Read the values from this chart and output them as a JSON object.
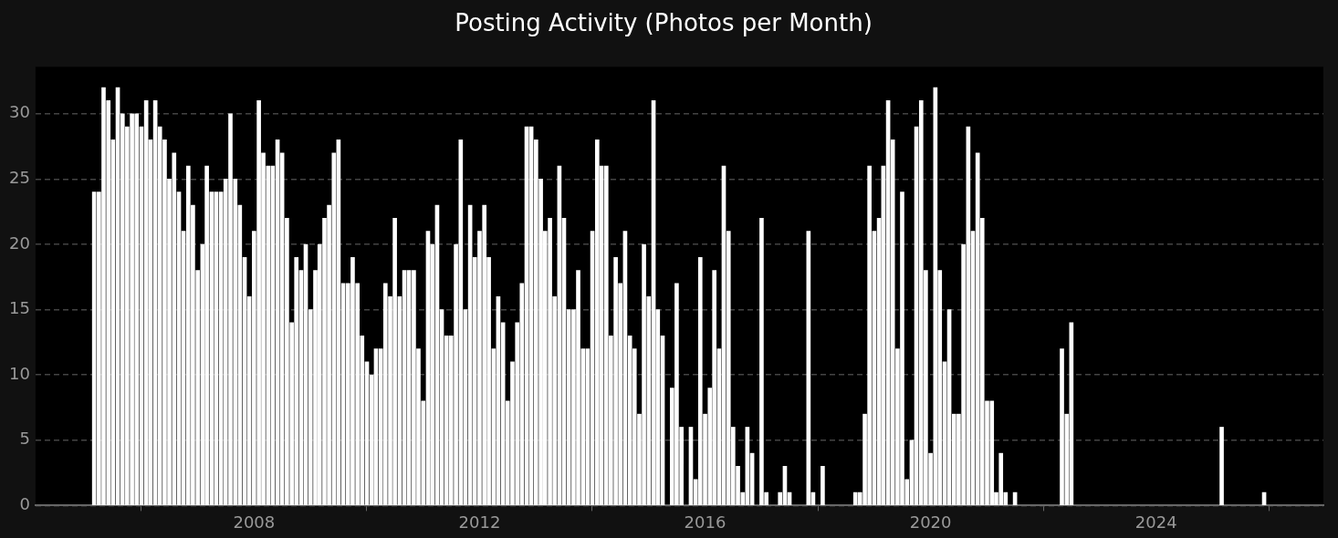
{
  "chart_data": {
    "type": "bar",
    "title": "Posting Activity (Photos per Month)",
    "x": [
      "2005-03",
      "2005-04",
      "2005-05",
      "2005-06",
      "2005-07",
      "2005-08",
      "2005-09",
      "2005-10",
      "2005-11",
      "2005-12",
      "2006-01",
      "2006-02",
      "2006-03",
      "2006-04",
      "2006-05",
      "2006-06",
      "2006-07",
      "2006-08",
      "2006-09",
      "2006-10",
      "2006-11",
      "2006-12",
      "2007-01",
      "2007-02",
      "2007-03",
      "2007-04",
      "2007-05",
      "2007-06",
      "2007-07",
      "2007-08",
      "2007-09",
      "2007-10",
      "2007-11",
      "2007-12",
      "2008-01",
      "2008-02",
      "2008-03",
      "2008-04",
      "2008-05",
      "2008-06",
      "2008-07",
      "2008-08",
      "2008-09",
      "2008-10",
      "2008-11",
      "2008-12",
      "2009-01",
      "2009-02",
      "2009-03",
      "2009-04",
      "2009-05",
      "2009-06",
      "2009-07",
      "2009-08",
      "2009-09",
      "2009-10",
      "2009-11",
      "2009-12",
      "2010-01",
      "2010-02",
      "2010-03",
      "2010-04",
      "2010-05",
      "2010-06",
      "2010-07",
      "2010-08",
      "2010-09",
      "2010-10",
      "2010-11",
      "2010-12",
      "2011-01",
      "2011-02",
      "2011-03",
      "2011-04",
      "2011-05",
      "2011-06",
      "2011-07",
      "2011-08",
      "2011-09",
      "2011-10",
      "2011-11",
      "2011-12",
      "2012-01",
      "2012-02",
      "2012-03",
      "2012-04",
      "2012-05",
      "2012-06",
      "2012-07",
      "2012-08",
      "2012-09",
      "2012-10",
      "2012-11",
      "2012-12",
      "2013-01",
      "2013-02",
      "2013-03",
      "2013-04",
      "2013-05",
      "2013-06",
      "2013-07",
      "2013-08",
      "2013-09",
      "2013-10",
      "2013-11",
      "2013-12",
      "2014-01",
      "2014-02",
      "2014-03",
      "2014-04",
      "2014-05",
      "2014-06",
      "2014-07",
      "2014-08",
      "2014-09",
      "2014-10",
      "2014-11",
      "2014-12",
      "2015-01",
      "2015-02",
      "2015-03",
      "2015-04",
      "2015-06",
      "2015-07",
      "2015-08",
      "2015-10",
      "2015-11",
      "2015-12",
      "2016-01",
      "2016-02",
      "2016-03",
      "2016-04",
      "2016-05",
      "2016-06",
      "2016-07",
      "2016-08",
      "2016-09",
      "2016-10",
      "2016-11",
      "2017-01",
      "2017-02",
      "2017-05",
      "2017-06",
      "2017-07",
      "2017-11",
      "2017-12",
      "2018-02",
      "2018-09",
      "2018-10",
      "2018-11",
      "2018-12",
      "2019-01",
      "2019-02",
      "2019-03",
      "2019-04",
      "2019-05",
      "2019-06",
      "2019-07",
      "2019-08",
      "2019-09",
      "2019-10",
      "2019-11",
      "2019-12",
      "2020-01",
      "2020-02",
      "2020-03",
      "2020-04",
      "2020-05",
      "2020-06",
      "2020-07",
      "2020-08",
      "2020-09",
      "2020-10",
      "2020-11",
      "2020-12",
      "2021-01",
      "2021-02",
      "2021-03",
      "2021-04",
      "2021-05",
      "2021-07",
      "2022-05",
      "2022-06",
      "2022-07",
      "2025-03",
      "2025-12"
    ],
    "values": [
      24,
      24,
      32,
      31,
      28,
      32,
      30,
      29,
      30,
      30,
      29,
      31,
      28,
      31,
      29,
      28,
      25,
      27,
      24,
      21,
      26,
      23,
      18,
      20,
      26,
      24,
      24,
      24,
      25,
      30,
      25,
      23,
      19,
      16,
      21,
      31,
      27,
      26,
      26,
      28,
      27,
      22,
      14,
      19,
      18,
      20,
      15,
      18,
      20,
      22,
      23,
      27,
      28,
      17,
      17,
      19,
      17,
      13,
      11,
      10,
      12,
      12,
      17,
      16,
      22,
      16,
      18,
      18,
      18,
      12,
      8,
      21,
      20,
      23,
      15,
      13,
      13,
      20,
      28,
      15,
      23,
      19,
      21,
      23,
      19,
      12,
      16,
      14,
      8,
      11,
      14,
      17,
      29,
      29,
      28,
      25,
      21,
      22,
      16,
      26,
      22,
      15,
      15,
      18,
      12,
      12,
      21,
      28,
      26,
      26,
      13,
      19,
      17,
      21,
      13,
      12,
      7,
      20,
      16,
      31,
      15,
      13,
      9,
      17,
      6,
      6,
      2,
      19,
      7,
      9,
      18,
      12,
      26,
      21,
      6,
      3,
      1,
      6,
      4,
      22,
      1,
      1,
      3,
      1,
      21,
      1,
      3,
      1,
      1,
      7,
      26,
      21,
      22,
      26,
      31,
      28,
      12,
      24,
      2,
      5,
      29,
      31,
      18,
      4,
      32,
      18,
      11,
      15,
      7,
      7,
      20,
      29,
      21,
      27,
      22,
      8,
      8,
      1,
      4,
      1,
      1,
      12,
      7,
      14,
      6,
      1
    ],
    "color": "#ffffff",
    "xlim": [
      "2004-02-15",
      "2026-12-20"
    ],
    "xticks": [
      {
        "value": "2008-01-01",
        "label": "2008"
      },
      {
        "value": "2012-01-01",
        "label": "2012"
      },
      {
        "value": "2016-01-01",
        "label": "2016"
      },
      {
        "value": "2020-01-01",
        "label": "2020"
      },
      {
        "value": "2024-01-01",
        "label": "2024"
      }
    ],
    "ylim": [
      0,
      33.6
    ],
    "yticks": [
      0,
      5,
      10,
      15,
      20,
      25,
      30
    ],
    "grid": "y",
    "legend": false
  }
}
